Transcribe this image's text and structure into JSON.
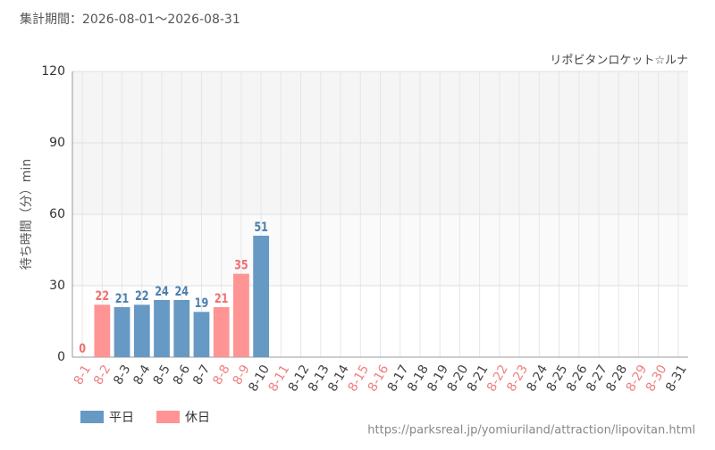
{
  "chart_data": {
    "type": "bar",
    "subtitle": "集計期間：2026-08-01～2026-08-31",
    "title": "リポビタンロケット☆ルナ",
    "y_label": "待ち時間（分）min",
    "source": "https://parksreal.jp/yomiuriland/attraction/lipovitan.html",
    "categories": [
      "8-1",
      "8-2",
      "8-3",
      "8-4",
      "8-5",
      "8-6",
      "8-7",
      "8-8",
      "8-9",
      "8-10",
      "8-11",
      "8-12",
      "8-13",
      "8-14",
      "8-15",
      "8-16",
      "8-17",
      "8-18",
      "8-19",
      "8-20",
      "8-21",
      "8-22",
      "8-23",
      "8-24",
      "8-25",
      "8-26",
      "8-27",
      "8-28",
      "8-29",
      "8-30",
      "8-31"
    ],
    "category_label_colors": [
      "#f08080",
      "#f08080",
      "#444",
      "#444",
      "#444",
      "#444",
      "#444",
      "#f08080",
      "#f08080",
      "#444",
      "#f08080",
      "#444",
      "#444",
      "#444",
      "#f08080",
      "#f08080",
      "#444",
      "#444",
      "#444",
      "#444",
      "#444",
      "#f08080",
      "#f08080",
      "#444",
      "#444",
      "#444",
      "#444",
      "#444",
      "#f08080",
      "#f08080",
      "#444"
    ],
    "series": [
      {
        "name": "平日",
        "color": "#6699c4",
        "label_color": "#4a7fae",
        "values": [
          null,
          null,
          21,
          22,
          24,
          24,
          19,
          null,
          null,
          51,
          null,
          null,
          null,
          null,
          null,
          null,
          null,
          null,
          null,
          null,
          null,
          null,
          null,
          null,
          null,
          null,
          null,
          null,
          null,
          null,
          null
        ]
      },
      {
        "name": "休日",
        "color": "#ff9494",
        "label_color": "#f07070",
        "values": [
          0,
          22,
          null,
          null,
          null,
          null,
          null,
          21,
          35,
          null,
          null,
          null,
          null,
          null,
          null,
          null,
          null,
          null,
          null,
          null,
          null,
          null,
          null,
          null,
          null,
          null,
          null,
          null,
          null,
          null,
          null
        ]
      }
    ],
    "ylim": [
      0,
      120
    ],
    "yticks": [
      0,
      30,
      60,
      90,
      120
    ],
    "grid": true
  }
}
